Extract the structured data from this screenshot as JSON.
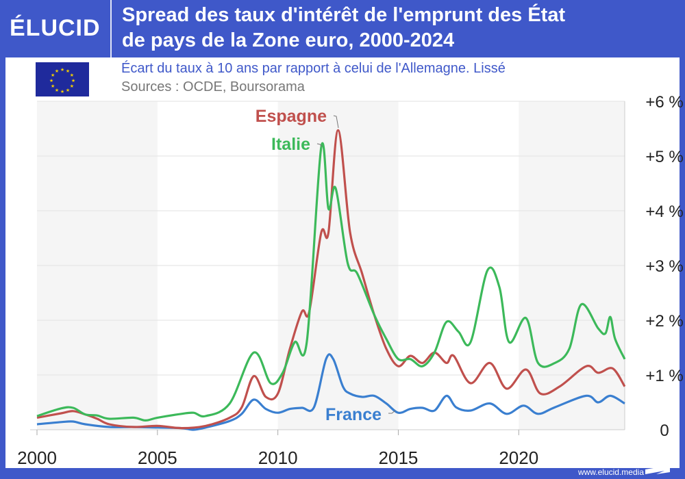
{
  "brand": {
    "logo": "ÉLUCID",
    "website": "www.elucid.media"
  },
  "title_line1": "Spread des taux d'intérêt de l'emprunt des État",
  "title_line2": "de pays de la Zone euro, 2000-2024",
  "subtitle": "Écart du taux à 10 ans par rapport à celui de l'Allemagne. Lissé",
  "sources": "Sources : OCDE, Boursorama",
  "flag_icon": "eu-flag-icon",
  "chart_data": {
    "type": "line",
    "xlim": [
      2000,
      2024.4
    ],
    "ylim": [
      0,
      6
    ],
    "x_ticks": [
      2000,
      2005,
      2010,
      2015,
      2020
    ],
    "x_tick_labels": [
      "2000",
      "2005",
      "2010",
      "2015",
      "2020"
    ],
    "y_ticks": [
      0,
      1,
      2,
      3,
      4,
      5,
      6
    ],
    "y_tick_labels": [
      "0",
      "+1 %",
      "+2 %",
      "+3 %",
      "+4 %",
      "+5 %",
      "+6 %"
    ],
    "grid": "horizontal",
    "shaded_bands": [
      [
        2000,
        2005
      ],
      [
        2010,
        2015
      ],
      [
        2020,
        2024.4
      ]
    ],
    "series": [
      {
        "name": "France",
        "color": "#3a7fd0",
        "points": [
          [
            2000,
            0.1
          ],
          [
            2001,
            0.14
          ],
          [
            2001.5,
            0.15
          ],
          [
            2002,
            0.1
          ],
          [
            2003,
            0.05
          ],
          [
            2004,
            0.05
          ],
          [
            2005,
            0.04
          ],
          [
            2006,
            0.03
          ],
          [
            2006.5,
            0.0
          ],
          [
            2007,
            0.04
          ],
          [
            2008,
            0.16
          ],
          [
            2008.5,
            0.29
          ],
          [
            2009,
            0.55
          ],
          [
            2009.5,
            0.38
          ],
          [
            2010,
            0.31
          ],
          [
            2010.5,
            0.38
          ],
          [
            2011,
            0.4
          ],
          [
            2011.5,
            0.41
          ],
          [
            2012,
            1.29
          ],
          [
            2012.3,
            1.29
          ],
          [
            2012.7,
            0.79
          ],
          [
            2013,
            0.66
          ],
          [
            2013.5,
            0.6
          ],
          [
            2014,
            0.62
          ],
          [
            2014.5,
            0.48
          ],
          [
            2015,
            0.31
          ],
          [
            2015.5,
            0.38
          ],
          [
            2016,
            0.4
          ],
          [
            2016.5,
            0.35
          ],
          [
            2017,
            0.62
          ],
          [
            2017.4,
            0.41
          ],
          [
            2018,
            0.35
          ],
          [
            2018.8,
            0.48
          ],
          [
            2019.5,
            0.29
          ],
          [
            2020.2,
            0.44
          ],
          [
            2020.8,
            0.29
          ],
          [
            2021.5,
            0.41
          ],
          [
            2022.8,
            0.62
          ],
          [
            2023.3,
            0.5
          ],
          [
            2023.8,
            0.62
          ],
          [
            2024.4,
            0.48
          ]
        ]
      },
      {
        "name": "Espagne",
        "color": "#c0504d",
        "points": [
          [
            2000,
            0.22
          ],
          [
            2001,
            0.3
          ],
          [
            2001.5,
            0.34
          ],
          [
            2002,
            0.28
          ],
          [
            2002.5,
            0.2
          ],
          [
            2003,
            0.1
          ],
          [
            2004,
            0.05
          ],
          [
            2005,
            0.07
          ],
          [
            2006,
            0.03
          ],
          [
            2007,
            0.07
          ],
          [
            2008,
            0.22
          ],
          [
            2008.5,
            0.41
          ],
          [
            2009,
            0.98
          ],
          [
            2009.5,
            0.6
          ],
          [
            2010,
            0.66
          ],
          [
            2010.5,
            1.48
          ],
          [
            2011,
            2.16
          ],
          [
            2011.3,
            2.15
          ],
          [
            2011.8,
            3.6
          ],
          [
            2012.1,
            3.6
          ],
          [
            2012.5,
            5.47
          ],
          [
            2013,
            3.6
          ],
          [
            2013.5,
            2.85
          ],
          [
            2014,
            2.1
          ],
          [
            2014.5,
            1.48
          ],
          [
            2015,
            1.16
          ],
          [
            2015.5,
            1.35
          ],
          [
            2016,
            1.22
          ],
          [
            2016.5,
            1.41
          ],
          [
            2017,
            1.22
          ],
          [
            2017.3,
            1.35
          ],
          [
            2018,
            0.85
          ],
          [
            2018.8,
            1.22
          ],
          [
            2019.5,
            0.75
          ],
          [
            2020.3,
            1.1
          ],
          [
            2020.9,
            0.66
          ],
          [
            2021.7,
            0.79
          ],
          [
            2022.8,
            1.16
          ],
          [
            2023.3,
            1.04
          ],
          [
            2023.9,
            1.12
          ],
          [
            2024.4,
            0.79
          ]
        ]
      },
      {
        "name": "Italie",
        "color": "#3cb95a",
        "points": [
          [
            2000,
            0.25
          ],
          [
            2001,
            0.39
          ],
          [
            2001.5,
            0.4
          ],
          [
            2002,
            0.28
          ],
          [
            2002.5,
            0.26
          ],
          [
            2003,
            0.2
          ],
          [
            2004,
            0.22
          ],
          [
            2004.5,
            0.17
          ],
          [
            2005,
            0.22
          ],
          [
            2006,
            0.29
          ],
          [
            2006.5,
            0.31
          ],
          [
            2007,
            0.25
          ],
          [
            2008,
            0.48
          ],
          [
            2009,
            1.41
          ],
          [
            2009.7,
            0.85
          ],
          [
            2010.2,
            1.04
          ],
          [
            2010.7,
            1.6
          ],
          [
            2011.2,
            1.6
          ],
          [
            2011.8,
            5.16
          ],
          [
            2012.1,
            4.04
          ],
          [
            2012.4,
            4.41
          ],
          [
            2012.9,
            3.04
          ],
          [
            2013.3,
            2.85
          ],
          [
            2014,
            2.1
          ],
          [
            2014.5,
            1.66
          ],
          [
            2015,
            1.29
          ],
          [
            2015.5,
            1.29
          ],
          [
            2016,
            1.16
          ],
          [
            2016.5,
            1.41
          ],
          [
            2017,
            1.97
          ],
          [
            2017.5,
            1.79
          ],
          [
            2018,
            1.6
          ],
          [
            2018.7,
            2.91
          ],
          [
            2019.2,
            2.6
          ],
          [
            2019.6,
            1.6
          ],
          [
            2020.3,
            2.04
          ],
          [
            2020.8,
            1.22
          ],
          [
            2021.5,
            1.22
          ],
          [
            2022.1,
            1.48
          ],
          [
            2022.6,
            2.29
          ],
          [
            2023.3,
            1.85
          ],
          [
            2023.6,
            1.76
          ],
          [
            2023.8,
            2.06
          ],
          [
            2024.0,
            1.66
          ],
          [
            2024.4,
            1.29
          ]
        ]
      }
    ],
    "annotations": [
      {
        "text": "Espagne",
        "color": "#c0504d"
      },
      {
        "text": "Italie",
        "color": "#3cb95a"
      },
      {
        "text": "France",
        "color": "#3a7fd0"
      }
    ]
  }
}
